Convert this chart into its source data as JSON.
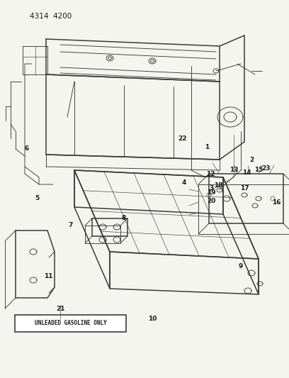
{
  "title": "4314  4200",
  "background_color": "#f5f5f0",
  "line_color": "#3a3a3a",
  "text_color": "#1a1a1a",
  "label_box_text": "UNLEADED GASOLINE ONLY",
  "fig_w": 4.08,
  "fig_h": 5.33,
  "dpi": 100
}
